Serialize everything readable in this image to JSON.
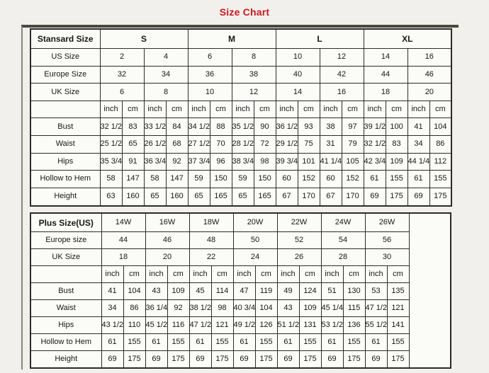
{
  "page": {
    "title": "Size Chart",
    "title_color": "#c8191e",
    "background": "#f1f0ec"
  },
  "standard_table": {
    "corner_label": "Stansard Size",
    "size_groups": [
      "S",
      "M",
      "L",
      "XL"
    ],
    "size_rows": [
      {
        "label": "US Size",
        "values": [
          "2",
          "4",
          "6",
          "8",
          "10",
          "12",
          "14",
          "16"
        ]
      },
      {
        "label": "Europe Size",
        "values": [
          "32",
          "34",
          "36",
          "38",
          "40",
          "42",
          "44",
          "46"
        ]
      },
      {
        "label": "UK Size",
        "values": [
          "6",
          "8",
          "10",
          "12",
          "14",
          "16",
          "18",
          "20"
        ]
      }
    ],
    "unit_labels": [
      "inch",
      "cm",
      "inch",
      "cm",
      "inch",
      "cm",
      "inch",
      "cm",
      "inch",
      "cm",
      "inch",
      "cm",
      "inch",
      "cm",
      "inch",
      "cm"
    ],
    "measure_rows": [
      {
        "label": "Bust",
        "values": [
          "32 1/2",
          "83",
          "33 1/2",
          "84",
          "34 1/2",
          "88",
          "35 1/2",
          "90",
          "36 1/2",
          "93",
          "38",
          "97",
          "39 1/2",
          "100",
          "41",
          "104"
        ]
      },
      {
        "label": "Waist",
        "values": [
          "25 1/2",
          "65",
          "26 1/2",
          "68",
          "27 1/2",
          "70",
          "28 1/2",
          "72",
          "29 1/2",
          "75",
          "31",
          "79",
          "32 1/2",
          "83",
          "34",
          "86"
        ]
      },
      {
        "label": "Hips",
        "values": [
          "35 3/4",
          "91",
          "36 3/4",
          "92",
          "37 3/4",
          "96",
          "38 3/4",
          "98",
          "39 3/4",
          "101",
          "41 1/4",
          "105",
          "42 3/4",
          "109",
          "44 1/4",
          "112"
        ]
      },
      {
        "label": "Hollow to Hem",
        "values": [
          "58",
          "147",
          "58",
          "147",
          "59",
          "150",
          "59",
          "150",
          "60",
          "152",
          "60",
          "152",
          "61",
          "155",
          "61",
          "155"
        ]
      },
      {
        "label": "Height",
        "values": [
          "63",
          "160",
          "65",
          "160",
          "65",
          "165",
          "65",
          "165",
          "67",
          "170",
          "67",
          "170",
          "69",
          "175",
          "69",
          "175"
        ]
      }
    ]
  },
  "plus_table": {
    "corner_label": "Plus Size(US)",
    "size_groups": [
      "14W",
      "16W",
      "18W",
      "20W",
      "22W",
      "24W",
      "26W"
    ],
    "size_rows": [
      {
        "label": "Europe size",
        "values": [
          "44",
          "46",
          "48",
          "50",
          "52",
          "54",
          "56"
        ]
      },
      {
        "label": "UK Size",
        "values": [
          "18",
          "20",
          "22",
          "24",
          "26",
          "28",
          "30"
        ]
      }
    ],
    "unit_labels": [
      "inch",
      "cm",
      "inch",
      "cm",
      "inch",
      "cm",
      "inch",
      "cm",
      "inch",
      "cm",
      "inch",
      "cm",
      "inch",
      "cm"
    ],
    "measure_rows": [
      {
        "label": "Bust",
        "values": [
          "41",
          "104",
          "43",
          "109",
          "45",
          "114",
          "47",
          "119",
          "49",
          "124",
          "51",
          "130",
          "53",
          "135"
        ]
      },
      {
        "label": "Waist",
        "values": [
          "34",
          "86",
          "36 1/4",
          "92",
          "38 1/2",
          "98",
          "40 3/4",
          "104",
          "43",
          "109",
          "45 1/4",
          "115",
          "47 1/2",
          "121"
        ]
      },
      {
        "label": "Hips",
        "values": [
          "43 1/2",
          "110",
          "45 1/2",
          "116",
          "47 1/2",
          "121",
          "49 1/2",
          "126",
          "51 1/2",
          "131",
          "53 1/2",
          "136",
          "55 1/2",
          "141"
        ]
      },
      {
        "label": "Hollow to Hem",
        "values": [
          "61",
          "155",
          "61",
          "155",
          "61",
          "155",
          "61",
          "155",
          "61",
          "155",
          "61",
          "155",
          "61",
          "155"
        ]
      },
      {
        "label": "Height",
        "values": [
          "69",
          "175",
          "69",
          "175",
          "69",
          "175",
          "69",
          "175",
          "69",
          "175",
          "69",
          "175",
          "69",
          "175"
        ]
      }
    ]
  }
}
